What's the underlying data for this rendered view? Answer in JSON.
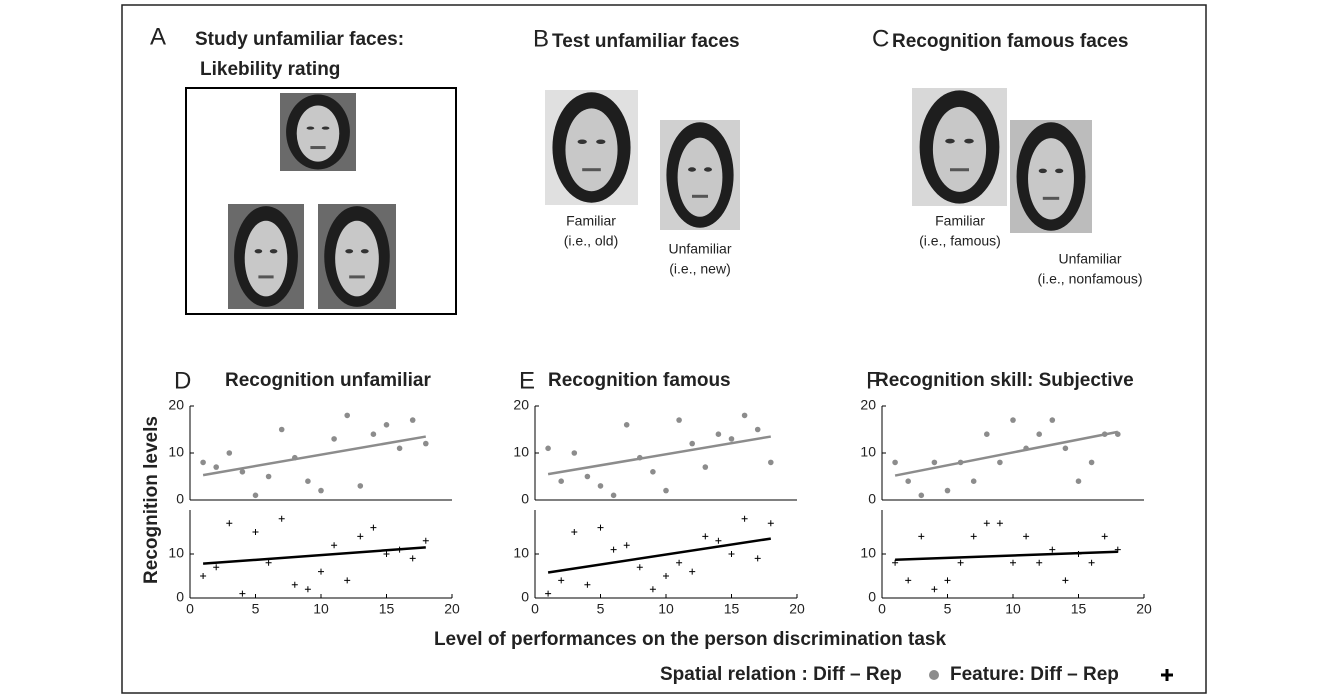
{
  "stimuli": [
    {
      "letter": "A",
      "title": [
        "Study unfamiliar faces:",
        "Likebility rating"
      ]
    },
    {
      "letter": "B",
      "title": [
        "Test unfamiliar faces"
      ],
      "captions": [
        [
          "Familiar",
          "(i.e., old)"
        ],
        [
          "Unfamiliar",
          "(i.e., new)"
        ]
      ]
    },
    {
      "letter": "C",
      "title": [
        "Recognition famous faces"
      ],
      "captions": [
        [
          "Familiar",
          "(i.e., famous)"
        ],
        [
          "Unfamiliar",
          "(i.e., nonfamous)"
        ]
      ]
    }
  ],
  "figure": {
    "x_label": "Level of performances on the person discrimination task",
    "y_label": "Recognition levels",
    "legend": [
      {
        "name": "Spatial relation : Diff – Rep",
        "color": "#8c8c8c",
        "marker": "circle"
      },
      {
        "name": "Feature: Diff – Rep",
        "color": "#000000",
        "marker": "plus"
      }
    ]
  },
  "chart_data": [
    {
      "type": "scatter",
      "letter": "D",
      "title": "Recognition unfamiliar",
      "x": [
        1,
        2,
        3,
        4,
        5,
        6,
        7,
        8,
        9,
        10,
        11,
        12,
        13,
        14,
        15,
        16,
        17,
        18
      ],
      "xlim": [
        0,
        20
      ],
      "xticks": [
        0,
        5,
        10,
        15,
        20
      ],
      "series": [
        {
          "color": "#8c8c8c",
          "marker": "circle",
          "ylim": [
            0,
            20
          ],
          "yticks": [
            0,
            10,
            20
          ],
          "values": [
            8,
            7,
            10,
            6,
            1,
            5,
            15,
            9,
            4,
            2,
            13,
            18,
            3,
            14,
            16,
            11,
            17,
            12
          ],
          "fit": [
            5.3,
            13.5
          ]
        },
        {
          "color": "#000000",
          "marker": "plus",
          "ylim": [
            0,
            20
          ],
          "yticks": [
            0,
            10
          ],
          "values": [
            5,
            7,
            17,
            1,
            15,
            8,
            18,
            3,
            2,
            6,
            12,
            4,
            14,
            16,
            10,
            11,
            9,
            13
          ],
          "fit": [
            7.8,
            11.5
          ]
        }
      ]
    },
    {
      "type": "scatter",
      "letter": "E",
      "title": "Recognition famous",
      "x": [
        1,
        2,
        3,
        4,
        5,
        6,
        7,
        8,
        9,
        10,
        11,
        12,
        13,
        14,
        15,
        16,
        17,
        18
      ],
      "xlim": [
        0,
        20
      ],
      "xticks": [
        0,
        5,
        10,
        15,
        20
      ],
      "series": [
        {
          "color": "#8c8c8c",
          "marker": "circle",
          "ylim": [
            0,
            20
          ],
          "yticks": [
            0,
            10,
            20
          ],
          "values": [
            11,
            4,
            10,
            5,
            3,
            1,
            16,
            9,
            6,
            2,
            17,
            12,
            7,
            14,
            13,
            18,
            15,
            8
          ],
          "fit": [
            5.5,
            13.5
          ]
        },
        {
          "color": "#000000",
          "marker": "plus",
          "ylim": [
            0,
            20
          ],
          "yticks": [
            0,
            10
          ],
          "values": [
            1,
            4,
            15,
            3,
            16,
            11,
            12,
            7,
            2,
            5,
            8,
            6,
            14,
            13,
            10,
            18,
            9,
            17
          ],
          "fit": [
            5.8,
            13.5
          ]
        }
      ]
    },
    {
      "type": "scatter",
      "letter": "F",
      "title": "Recognition skill: Subjective",
      "x": [
        1,
        2,
        3,
        4,
        5,
        6,
        7,
        8,
        9,
        10,
        11,
        12,
        13,
        14,
        15,
        16,
        17,
        18
      ],
      "xlim": [
        0,
        20
      ],
      "xticks": [
        0,
        5,
        10,
        15,
        20
      ],
      "series": [
        {
          "color": "#8c8c8c",
          "marker": "circle",
          "ylim": [
            0,
            20
          ],
          "yticks": [
            0,
            10,
            20
          ],
          "values": [
            8,
            4,
            1,
            8,
            2,
            8,
            4,
            14,
            8,
            17,
            11,
            14,
            17,
            11,
            4,
            8,
            14,
            14
          ],
          "fit": [
            5.2,
            14.5
          ]
        },
        {
          "color": "#000000",
          "marker": "plus",
          "ylim": [
            0,
            20
          ],
          "yticks": [
            0,
            10
          ],
          "values": [
            8,
            4,
            14,
            2,
            4,
            8,
            14,
            17,
            17,
            8,
            14,
            8,
            11,
            4,
            10,
            8,
            14,
            11
          ],
          "fit": [
            8.7,
            10.5
          ]
        }
      ]
    }
  ]
}
